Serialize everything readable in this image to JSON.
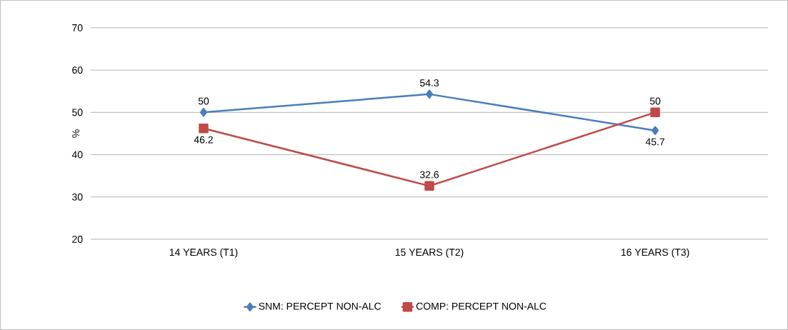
{
  "chart_data": {
    "type": "line",
    "ylabel": "%",
    "categories": [
      "14 YEARS (T1)",
      "15 YEARS (T2)",
      "16 YEARS (T3)"
    ],
    "series": [
      {
        "name": "SNM: PERCEPT NON-ALC",
        "color": "#4a7ebb",
        "marker": "diamond",
        "values": [
          50,
          54.3,
          45.7
        ]
      },
      {
        "name": "COMP: PERCEPT NON-ALC",
        "color": "#be4b48",
        "marker": "square",
        "values": [
          46.2,
          32.6,
          50
        ]
      }
    ],
    "ylim": [
      20,
      70
    ],
    "yticks": [
      20,
      30,
      40,
      50,
      60,
      70
    ],
    "grid": "y",
    "legend": "bottom",
    "data_labels": true,
    "line_style": "solid"
  }
}
